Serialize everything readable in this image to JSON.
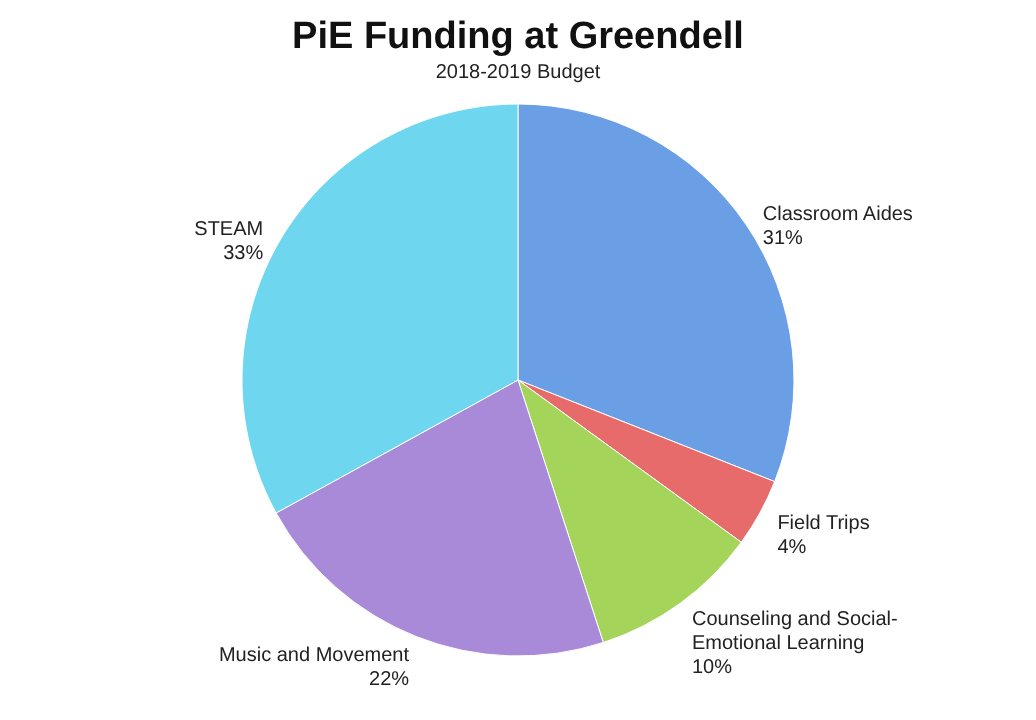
{
  "chart_data": {
    "type": "pie",
    "title": "PiE Funding at Greendell",
    "subtitle": "2018-2019 Budget",
    "categories": [
      "Classroom Aides",
      "Field Trips",
      "Counseling and Social-Emotional Learning",
      "Music and Movement",
      "STEAM"
    ],
    "values": [
      31,
      4,
      10,
      22,
      33
    ],
    "value_labels": [
      "31%",
      "4%",
      "10%",
      "22%",
      "33%"
    ],
    "colors": [
      "#6a9fe6",
      "#e86b6b",
      "#a5d45a",
      "#a98ad8",
      "#6fd6f0"
    ]
  }
}
